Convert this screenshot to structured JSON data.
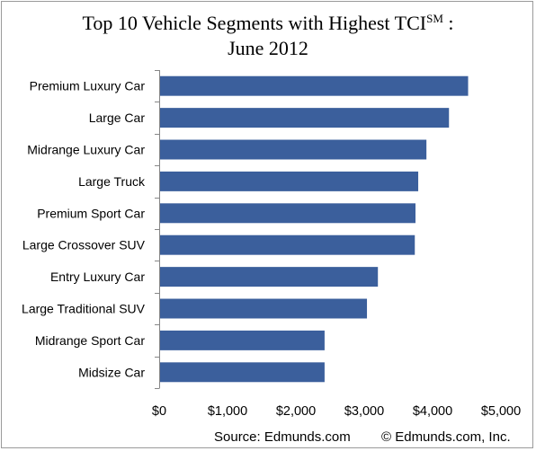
{
  "chart_data": {
    "type": "bar",
    "orientation": "horizontal",
    "title_main": "Top 10 Vehicle Segments with Highest TCI",
    "title_superscript": "SM",
    "title_suffix": ":",
    "subtitle": "June 2012",
    "categories": [
      "Premium Luxury Car",
      "Large Car",
      "Midrange Luxury Car",
      "Large Truck",
      "Premium Sport Car",
      "Large Crossover SUV",
      "Entry Luxury Car",
      "Large Traditional SUV",
      "Midrange Sport Car",
      "Midsize Car"
    ],
    "values": [
      4520,
      4240,
      3910,
      3790,
      3750,
      3740,
      3200,
      3040,
      2420,
      2420
    ],
    "xlim": [
      0,
      5000
    ],
    "xticks": [
      0,
      1000,
      2000,
      3000,
      4000,
      5000
    ],
    "xtick_labels": [
      "$0",
      "$1,000",
      "$2,000",
      "$3,000",
      "$4,000",
      "$5,000"
    ],
    "bar_color": "#3b5f9c",
    "grid": false,
    "legend": "none"
  },
  "footer": {
    "source": "Source: Edmunds.com",
    "copyright": "© Edmunds.com, Inc."
  }
}
